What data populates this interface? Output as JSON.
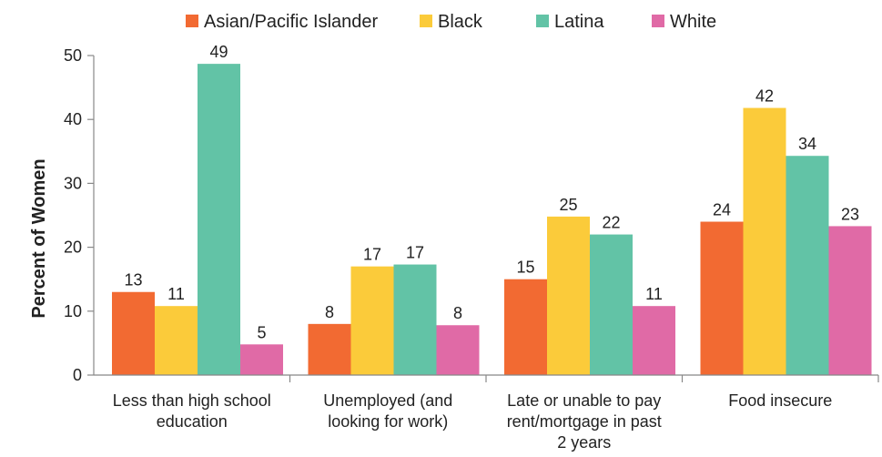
{
  "chart_data": {
    "type": "bar",
    "title": "",
    "xlabel": "",
    "ylabel": "Percent of Women",
    "ylim": [
      0,
      50
    ],
    "yticks": [
      0,
      10,
      20,
      30,
      40,
      50
    ],
    "grid": false,
    "legend_position": "top",
    "categories": [
      [
        "Less than high school",
        "education"
      ],
      [
        "Unemployed (and",
        "looking for work)"
      ],
      [
        "Late or unable to pay",
        "rent/mortgage in past",
        "2 years"
      ],
      [
        "Food insecure"
      ]
    ],
    "series": [
      {
        "name": "Asian/Pacific Islander",
        "color": "#f26a32",
        "values": [
          13,
          8,
          15,
          24
        ]
      },
      {
        "name": "Black",
        "color": "#fbcb3a",
        "values": [
          11,
          17,
          25,
          42
        ]
      },
      {
        "name": "Latina",
        "color": "#62c3a6",
        "values": [
          49,
          17,
          22,
          34
        ]
      },
      {
        "name": "White",
        "color": "#e06aa6",
        "values": [
          5,
          8,
          11,
          23
        ]
      }
    ],
    "plot_values": [
      [
        13,
        8,
        15,
        24
      ],
      [
        10.8,
        17,
        24.8,
        41.8
      ],
      [
        48.7,
        17.3,
        22,
        34.3
      ],
      [
        4.8,
        7.8,
        10.8,
        23.3
      ]
    ]
  }
}
